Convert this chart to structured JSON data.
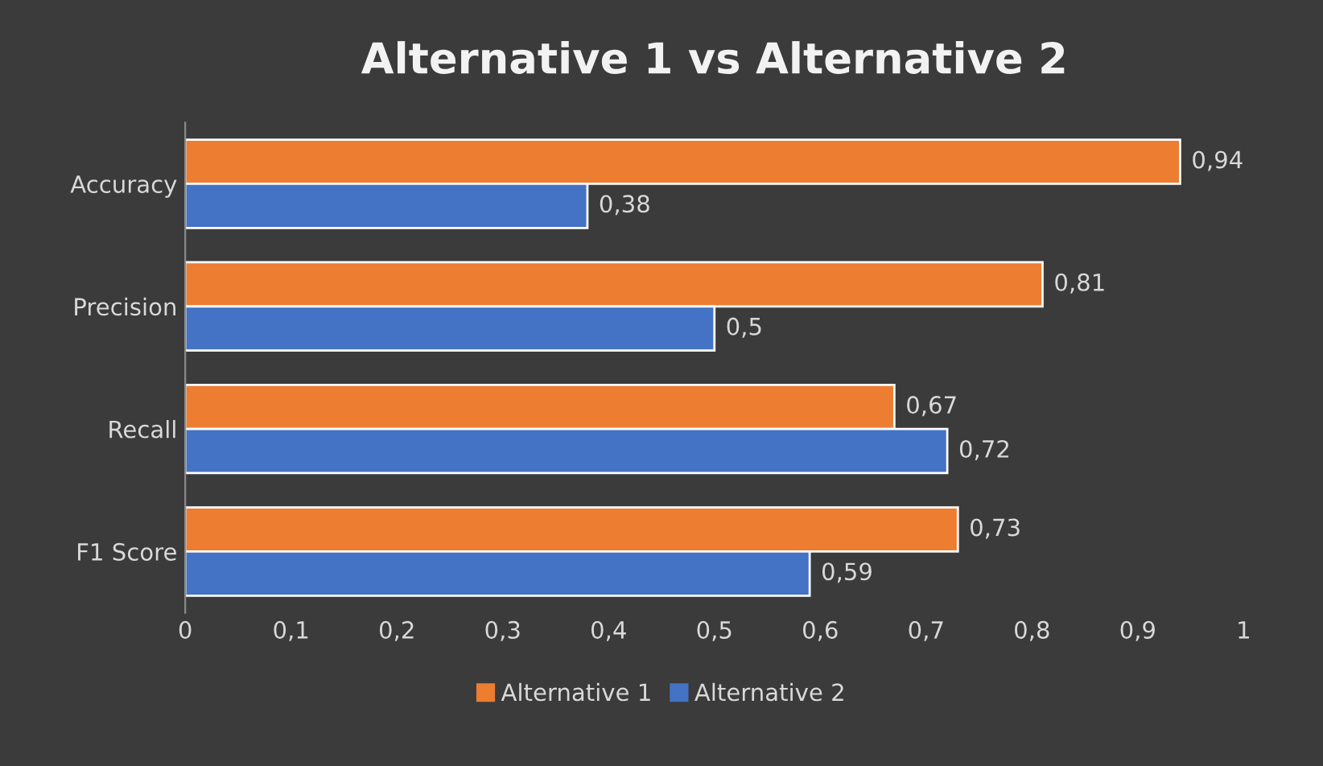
{
  "chart_data": {
    "type": "bar",
    "orientation": "horizontal",
    "title": "Alternative 1 vs Alternative 2",
    "categories": [
      "Accuracy",
      "Precision",
      "Recall",
      "F1 Score"
    ],
    "series": [
      {
        "name": "Alternative 1",
        "color": "#ed7d31",
        "values": [
          0.94,
          0.81,
          0.67,
          0.73
        ],
        "value_labels": [
          "0,94",
          "0,81",
          "0,67",
          "0,73"
        ]
      },
      {
        "name": "Alternative 2",
        "color": "#4472c4",
        "values": [
          0.38,
          0.5,
          0.72,
          0.59
        ],
        "value_labels": [
          "0,38",
          "0,5",
          "0,72",
          "0,59"
        ]
      }
    ],
    "xlim": [
      0,
      1
    ],
    "xticks": [
      0,
      {
        "value": 0.1,
        "label": "0,1"
      },
      {
        "value": 0.2,
        "label": "0,2"
      },
      {
        "value": 0.3,
        "label": "0,3"
      },
      {
        "value": 0.4,
        "label": "0,4"
      },
      {
        "value": 0.5,
        "label": "0,5"
      },
      {
        "value": 0.6,
        "label": "0,6"
      },
      {
        "value": 0.7,
        "label": "0,7"
      },
      {
        "value": 0.8,
        "label": "0,8"
      },
      {
        "value": 0.9,
        "label": "0,9"
      },
      1
    ],
    "grid": false,
    "legend": "bottom"
  }
}
